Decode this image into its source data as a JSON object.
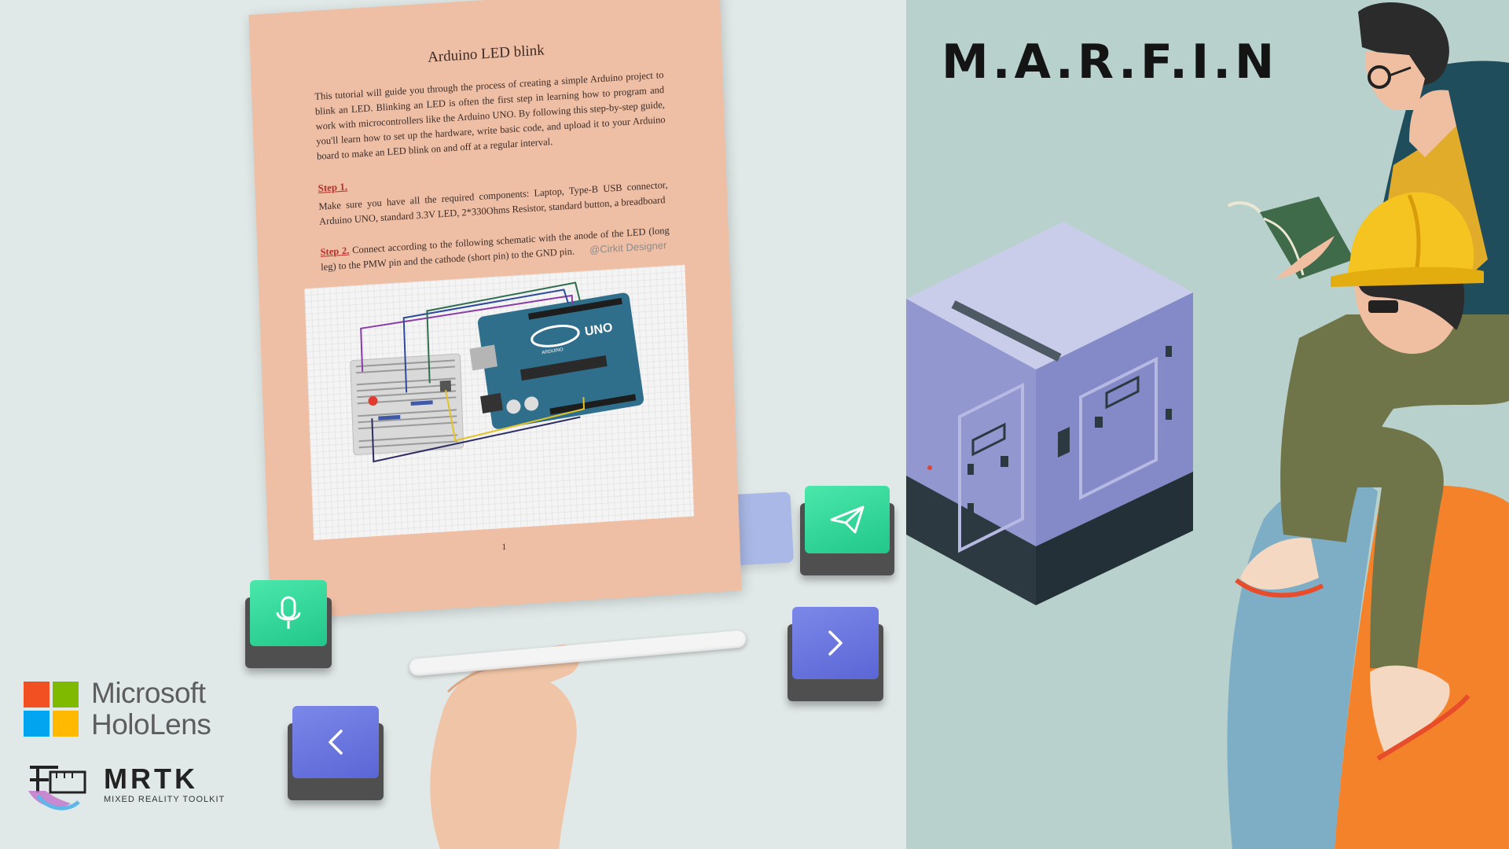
{
  "document": {
    "title": "Arduino LED blink",
    "intro": "This tutorial will guide you through the process of creating a simple Arduino project to blink an LED. Blinking an LED is often the first step in learning how to program and work with microcontrollers like the Arduino UNO. By following this step-by-step guide, you'll learn how to set up the hardware, write basic code, and upload it to your Arduino board to make an LED blink on and off at a regular interval.",
    "step1_label": "Step 1.",
    "step1_text": "Make sure you have all the required components: Laptop, Type-B USB connector, Arduino UNO, standard 3.3V LED, 2*330Ohms Resistor, standard button, a breadboard",
    "step2_label": "Step 2.",
    "step2_text": " Connect according to the following schematic with the anode of the LED (long leg) to the PMW pin and the cathode (short pin) to the GND pin.",
    "schematic_credit": "@Cirkit Designer",
    "page_number": "1"
  },
  "board": {
    "uno_label": "UNO",
    "brand_label": "ARDUINO"
  },
  "buttons": {
    "mic": "mic-icon",
    "send": "send-icon",
    "next": "chevron-right-icon",
    "previous": "chevron-left-icon"
  },
  "logos": {
    "microsoft_line1": "Microsoft",
    "microsoft_line2": "HoloLens",
    "mrtk_title": "MRTK",
    "mrtk_subtitle": "MIXED REALITY TOOLKIT"
  },
  "brand": {
    "title": "M.A.R.F.I.N"
  },
  "colors": {
    "left_bg": "#e1e9e8",
    "right_bg": "#b9d1cd",
    "page": "#efbfa5",
    "button_green": "#2fd596",
    "button_blue": "#6a75de",
    "step_red": "#b8302b",
    "ms_red": "#f25022",
    "ms_green": "#7fba00",
    "ms_blue": "#00a4ef",
    "ms_yellow": "#ffb900"
  }
}
